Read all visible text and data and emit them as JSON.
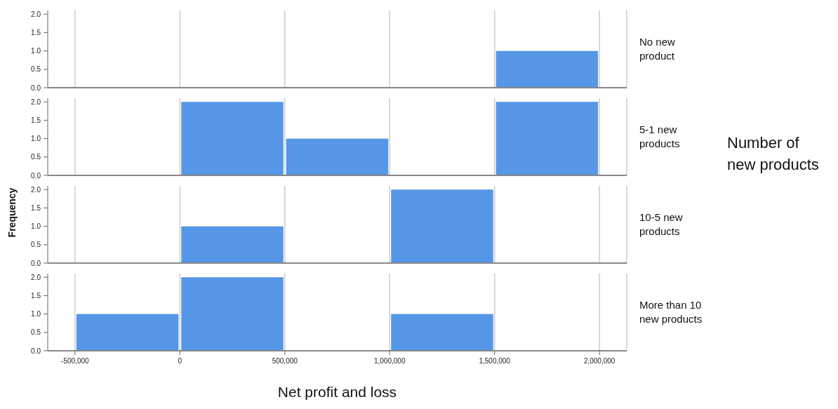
{
  "chart_data": [
    {
      "type": "histogram",
      "bins": [
        -500000,
        0,
        500000,
        1000000,
        1500000,
        2000000
      ],
      "series": [
        {
          "name": "No new product",
          "color": "#5596e6",
          "values": [
            0,
            0,
            0,
            0,
            1
          ]
        }
      ],
      "xlim": [
        -630000,
        2130000
      ],
      "xticks": [
        {
          "value": -500000,
          "label": null
        },
        {
          "value": 0,
          "label": null
        },
        {
          "value": 500000,
          "label": null
        },
        {
          "value": 1000000,
          "label": null
        },
        {
          "value": 1500000,
          "label": null
        },
        {
          "value": 2000000,
          "label": null
        }
      ],
      "ylim": [
        0,
        2.1
      ],
      "yticks": [
        {
          "value": 0,
          "label": "0.0"
        },
        {
          "value": 0.5,
          "label": "0.5"
        },
        {
          "value": 1,
          "label": "1.0"
        },
        {
          "value": 1.5,
          "label": "1.5"
        },
        {
          "value": 2,
          "label": "2.0"
        }
      ],
      "grid": "x",
      "tick_labels": "y"
    },
    {
      "type": "histogram",
      "legend_title": "Number of new products",
      "bins": [
        -500000,
        0,
        500000,
        1000000,
        1500000,
        2000000
      ],
      "series": [
        {
          "name": "5-1 new products",
          "color": "#5596e6",
          "values": [
            0,
            2,
            1,
            0,
            2
          ]
        }
      ],
      "xlim": [
        -630000,
        2130000
      ],
      "xticks": [
        {
          "value": -500000,
          "label": null
        },
        {
          "value": 0,
          "label": null
        },
        {
          "value": 500000,
          "label": null
        },
        {
          "value": 1000000,
          "label": null
        },
        {
          "value": 1500000,
          "label": null
        },
        {
          "value": 2000000,
          "label": null
        }
      ],
      "ylim": [
        0,
        2.1
      ],
      "yticks": [
        {
          "value": 0,
          "label": "0.0"
        },
        {
          "value": 0.5,
          "label": "0.5"
        },
        {
          "value": 1,
          "label": "1.0"
        },
        {
          "value": 1.5,
          "label": "1.5"
        },
        {
          "value": 2,
          "label": "2.0"
        }
      ],
      "grid": "x",
      "tick_labels": "y"
    },
    {
      "type": "histogram",
      "ylabel": "Frequency",
      "bins": [
        -500000,
        0,
        500000,
        1000000,
        1500000,
        2000000
      ],
      "series": [
        {
          "name": "10-5 new products",
          "color": "#5596e6",
          "values": [
            0,
            1,
            0,
            2,
            0
          ]
        }
      ],
      "xlim": [
        -630000,
        2130000
      ],
      "xticks": [
        {
          "value": -500000,
          "label": null
        },
        {
          "value": 0,
          "label": null
        },
        {
          "value": 500000,
          "label": null
        },
        {
          "value": 1000000,
          "label": null
        },
        {
          "value": 1500000,
          "label": null
        },
        {
          "value": 2000000,
          "label": null
        }
      ],
      "ylim": [
        0,
        2.1
      ],
      "yticks": [
        {
          "value": 0,
          "label": "0.0"
        },
        {
          "value": 0.5,
          "label": "0.5"
        },
        {
          "value": 1,
          "label": "1.0"
        },
        {
          "value": 1.5,
          "label": "1.5"
        },
        {
          "value": 2,
          "label": "2.0"
        }
      ],
      "grid": "x",
      "tick_labels": "y"
    },
    {
      "type": "histogram",
      "xlabel": "Net profit and loss",
      "bins": [
        -500000,
        0,
        500000,
        1000000,
        1500000,
        2000000
      ],
      "series": [
        {
          "name": "More than 10 new products",
          "color": "#5596e6",
          "values": [
            1,
            2,
            0,
            1,
            0
          ]
        }
      ],
      "xlim": [
        -630000,
        2130000
      ],
      "xticks": [
        {
          "value": -500000,
          "label": "-500,000"
        },
        0,
        {
          "value": 500000,
          "label": "500,000"
        },
        {
          "value": 1000000,
          "label": "1,000,000"
        },
        {
          "value": 1500000,
          "label": "1,500,000"
        },
        {
          "value": 2000000,
          "label": "2,000,000"
        }
      ],
      "ylim": [
        0,
        2.1
      ],
      "yticks": [
        {
          "value": 0,
          "label": "0.0"
        },
        {
          "value": 0.5,
          "label": "0.5"
        },
        {
          "value": 1,
          "label": "1.0"
        },
        {
          "value": 1.5,
          "label": "1.5"
        },
        {
          "value": 2,
          "label": "2.0"
        }
      ],
      "grid": "x"
    }
  ]
}
